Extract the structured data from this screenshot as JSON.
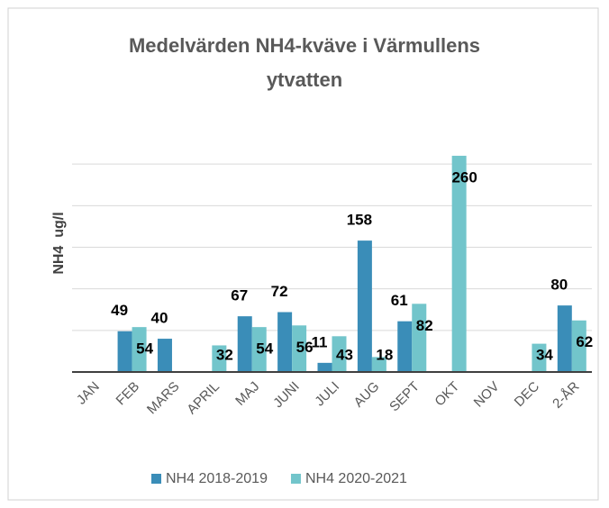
{
  "chart_data": {
    "type": "bar",
    "title": "Medelvärden NH4-kväve i Värmullens ytvatten",
    "y_label": "NH4  ug/l",
    "categories": [
      "JAN",
      "FEB",
      "MARS",
      "APRIL",
      "MAJ",
      "JUNI",
      "JULI",
      "AUG",
      "SEPT",
      "OKT",
      "NOV",
      "DEC",
      "2-ÅR"
    ],
    "series": [
      {
        "name": "NH4 2018-2019",
        "color": "#3a8db8",
        "values": [
          null,
          49,
          40,
          null,
          67,
          72,
          11,
          158,
          61,
          null,
          null,
          null,
          80
        ]
      },
      {
        "name": "NH4 2020-2021",
        "color": "#72c5cb",
        "values": [
          null,
          54,
          null,
          32,
          54,
          56,
          43,
          18,
          82,
          260,
          null,
          34,
          62
        ]
      }
    ],
    "ylim": [
      0,
      300
    ],
    "yticks": [
      0,
      50,
      100,
      150,
      200,
      250
    ],
    "grid": true,
    "legend": "bottom"
  }
}
